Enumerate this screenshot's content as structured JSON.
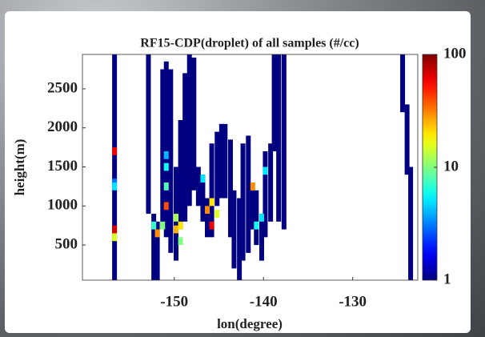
{
  "chart_data": {
    "type": "heatmap",
    "title": "RF15-CDP(droplet) of all samples (#/cc)",
    "x_label": "lon(degree)",
    "y_label": "height(m)",
    "x": [
      -156.7,
      -152.9,
      -152.3,
      -151.9,
      -151.3,
      -150.9,
      -150.4,
      -149.8,
      -149.3,
      -148.8,
      -148.3,
      -147.8,
      -147.3,
      -146.8,
      -146.3,
      -145.8,
      -145.2,
      -144.7,
      -144.3,
      -143.7,
      -143.3,
      -142.7,
      -142.3,
      -141.7,
      -141.2,
      -140.8,
      -140.2,
      -139.8,
      -139.2,
      -138.8,
      -138.3,
      -137.7,
      -124.4,
      -123.9,
      -123.5,
      -156.7,
      -156.7,
      -156.7,
      -156.7,
      -156.7,
      -152.3,
      -151.9,
      -151.3,
      -150.9,
      -150.9,
      -150.9,
      -150.9,
      -149.8,
      -149.8,
      -149.3,
      -149.3,
      -146.8,
      -146.3,
      -145.8,
      -145.8,
      -145.2,
      -141.2,
      -140.8,
      -140.2,
      -139.8
    ],
    "y_bottom": [
      50,
      900,
      50,
      50,
      700,
      600,
      400,
      300,
      700,
      800,
      1000,
      1200,
      1000,
      800,
      600,
      600,
      1000,
      1100,
      1100,
      600,
      200,
      50,
      300,
      400,
      700,
      500,
      300,
      600,
      800,
      1700,
      800,
      700,
      2200,
      1400,
      50,
      1650,
      1200,
      1300,
      650,
      550,
      700,
      600,
      700,
      1450,
      1200,
      950,
      1600,
      800,
      650,
      700,
      500,
      1300,
      900,
      700,
      1000,
      850,
      1200,
      700,
      800,
      1400
    ],
    "y_top": [
      2940,
      2940,
      900,
      800,
      2750,
      2850,
      2750,
      1500,
      2100,
      2700,
      2940,
      2900,
      1500,
      1400,
      1100,
      1800,
      1950,
      2050,
      2050,
      1850,
      1200,
      1100,
      1800,
      1900,
      1200,
      1200,
      900,
      1700,
      1800,
      2940,
      2940,
      2940,
      2940,
      2300,
      1500,
      1750,
      1300,
      1350,
      750,
      650,
      800,
      700,
      800,
      1550,
      1300,
      1050,
      1700,
      900,
      750,
      800,
      600,
      1400,
      1000,
      800,
      1100,
      950,
      1300,
      800,
      900,
      1500
    ],
    "values": [
      1,
      1,
      1,
      1,
      1,
      1,
      1,
      1,
      1,
      1,
      1,
      1,
      1,
      1,
      1,
      1,
      1,
      1,
      1,
      1,
      1,
      1,
      1,
      1,
      1,
      1,
      1,
      1,
      1,
      1,
      1,
      1,
      1,
      1,
      1,
      60,
      5,
      3,
      70,
      15,
      7,
      30,
      10,
      6,
      8,
      40,
      4,
      12,
      25,
      20,
      10,
      5,
      30,
      60,
      20,
      15,
      30,
      6,
      5,
      5
    ],
    "xlim": [
      -160.3,
      -122.7
    ],
    "ylim": [
      50,
      2940
    ],
    "xticks": [
      -150,
      -140,
      -130
    ],
    "yticks": [
      500,
      1000,
      1500,
      2000,
      2500
    ],
    "colormap": "jet",
    "color_log_scale": true,
    "zlim": [
      1,
      100
    ],
    "zticks": [
      1,
      10,
      100
    ]
  }
}
